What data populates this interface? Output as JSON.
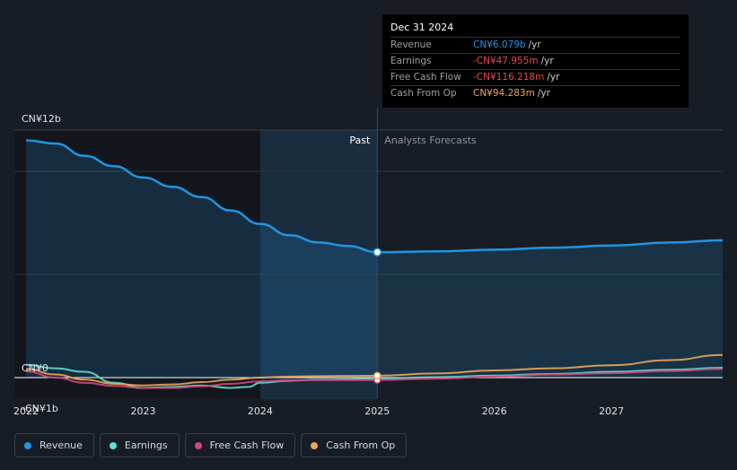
{
  "colors": {
    "revenue": "#2394df",
    "earnings": "#5de0cf",
    "free_cash_flow": "#d5467e",
    "cash_from_op": "#eba65a",
    "background": "#181d25",
    "past_band": "#1d3a55",
    "grid": "#2e343d"
  },
  "tooltip": {
    "date": "Dec 31 2024",
    "rows": [
      {
        "label": "Revenue",
        "value": "CN¥6.079b",
        "unit": "/yr",
        "color": "#2394df"
      },
      {
        "label": "Earnings",
        "value": "-CN¥47.955m",
        "unit": "/yr",
        "color": "#ef4545"
      },
      {
        "label": "Free Cash Flow",
        "value": "-CN¥116.218m",
        "unit": "/yr",
        "color": "#ef4545"
      },
      {
        "label": "Cash From Op",
        "value": "CN¥94.283m",
        "unit": "/yr",
        "color": "#eba65a"
      }
    ]
  },
  "legend": [
    {
      "label": "Revenue",
      "color": "#2394df"
    },
    {
      "label": "Earnings",
      "color": "#5de0cf"
    },
    {
      "label": "Free Cash Flow",
      "color": "#d5467e"
    },
    {
      "label": "Cash From Op",
      "color": "#eba65a"
    }
  ],
  "chart_data": {
    "type": "line",
    "title": "",
    "xlabel": "",
    "ylabel": "",
    "ylim": [
      -1,
      12
    ],
    "xlim": [
      2021.9,
      2027.95
    ],
    "y_tick_labels": [
      {
        "value": 12,
        "label": "CN¥12b"
      },
      {
        "value": 0,
        "label": "CN¥0"
      },
      {
        "value": -1,
        "label": "-CN¥1b"
      }
    ],
    "x_ticks": [
      2022,
      2023,
      2024,
      2025,
      2026,
      2027
    ],
    "x_tick_labels": [
      "2022",
      "2023",
      "2024",
      "2025",
      "2026",
      "2027"
    ],
    "past_label": "Past",
    "forecast_label": "Analysts Forecasts",
    "divider_x": 2025.0,
    "highlight_band": [
      2024.0,
      2025.0
    ],
    "highlight_point": {
      "x": 2025.0,
      "revenue": 6.079,
      "cash_from_op": 0.094,
      "free_cash_flow": -0.116
    },
    "grid": true,
    "legend_position": "bottom-left",
    "series": [
      {
        "name": "Revenue",
        "key": "revenue",
        "area": true,
        "x": [
          2022.0,
          2022.25,
          2022.5,
          2022.75,
          2023.0,
          2023.25,
          2023.5,
          2023.75,
          2024.0,
          2024.25,
          2024.5,
          2024.75,
          2025.0,
          2025.5,
          2026.0,
          2026.5,
          2027.0,
          2027.5,
          2027.95
        ],
        "values": [
          11.5,
          11.35,
          10.75,
          10.25,
          9.7,
          9.25,
          8.75,
          8.1,
          7.45,
          6.9,
          6.55,
          6.38,
          6.08,
          6.12,
          6.2,
          6.3,
          6.4,
          6.55,
          6.66
        ]
      },
      {
        "name": "Earnings",
        "key": "earnings",
        "x": [
          2022.0,
          2022.25,
          2022.5,
          2022.75,
          2023.0,
          2023.25,
          2023.5,
          2023.75,
          2023.9,
          2024.0,
          2024.25,
          2024.5,
          2024.75,
          2025.0,
          2025.5,
          2026.0,
          2026.5,
          2027.0,
          2027.5,
          2027.95
        ],
        "values": [
          0.62,
          0.45,
          0.28,
          -0.25,
          -0.5,
          -0.45,
          -0.38,
          -0.5,
          -0.45,
          -0.25,
          -0.15,
          -0.1,
          -0.08,
          -0.05,
          0.02,
          0.1,
          0.18,
          0.28,
          0.38,
          0.48
        ]
      },
      {
        "name": "Free Cash Flow",
        "key": "free_cash_flow",
        "x": [
          2022.0,
          2022.25,
          2022.5,
          2022.75,
          2023.0,
          2023.25,
          2023.5,
          2023.75,
          2024.0,
          2024.25,
          2024.5,
          2024.75,
          2025.0,
          2025.5,
          2026.0,
          2026.5,
          2027.0,
          2027.5,
          2027.95
        ],
        "values": [
          0.3,
          0.0,
          -0.25,
          -0.4,
          -0.5,
          -0.5,
          -0.42,
          -0.3,
          -0.18,
          -0.13,
          -0.12,
          -0.12,
          -0.116,
          -0.05,
          0.05,
          0.15,
          0.22,
          0.32,
          0.42
        ]
      },
      {
        "name": "Cash From Op",
        "key": "cash_from_op",
        "x": [
          2022.0,
          2022.25,
          2022.5,
          2022.75,
          2023.0,
          2023.25,
          2023.5,
          2023.75,
          2024.0,
          2024.25,
          2024.5,
          2024.75,
          2025.0,
          2025.5,
          2026.0,
          2026.5,
          2027.0,
          2027.5,
          2027.95
        ],
        "values": [
          0.42,
          0.15,
          -0.1,
          -0.3,
          -0.38,
          -0.33,
          -0.22,
          -0.1,
          0.0,
          0.05,
          0.07,
          0.08,
          0.094,
          0.2,
          0.35,
          0.45,
          0.6,
          0.85,
          1.1
        ]
      }
    ]
  }
}
